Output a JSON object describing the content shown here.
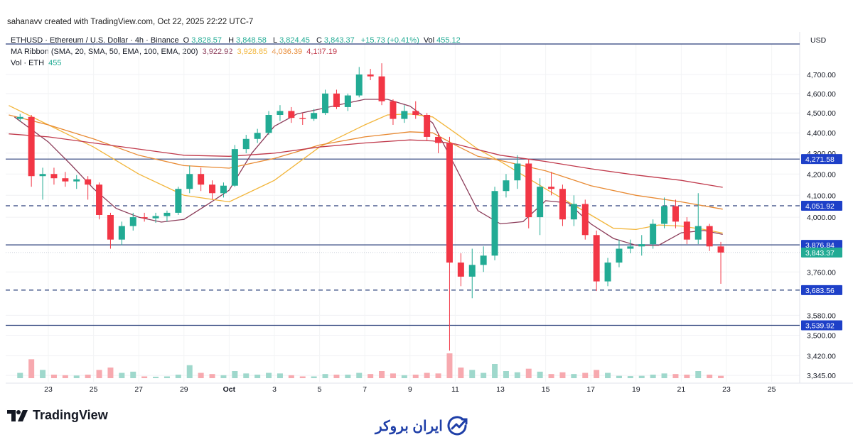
{
  "credit": "sahanavv created with TradingView.com, Oct 22, 2025 22:22 UTC-7",
  "legend": {
    "symbol": "ETHUSD · Ethereum / U.S. Dollar · 4h · Binance",
    "o_label": "O",
    "o": "3,828.57",
    "h_label": "H",
    "h": "3,848.58",
    "l_label": "L",
    "l": "3,824.45",
    "c_label": "C",
    "c": "3,843.37",
    "change": "+15.73 (+0.41%)",
    "vol_label": "Vol",
    "vol": "455.12",
    "ma_title": "MA Ribbon (SMA, 20, SMA, 50, EMA, 100, EMA, 200)",
    "ma_values": [
      "3,922.92",
      "3,928.85",
      "4,036.39",
      "4,137.19"
    ],
    "vol_title": "Vol · ETH",
    "vol_value": "455"
  },
  "colors": {
    "up": "#22ab94",
    "down": "#f23645",
    "up_vol": "#9fd8cc",
    "down_vol": "#f7a9af",
    "sma20": "#8c3d5a",
    "sma50": "#f2b53a",
    "ema100": "#e88a33",
    "ema200": "#c0394b",
    "level_line": "#2a3f7a",
    "level_tag": "#1e40c8",
    "price_tag": "#22ab94"
  },
  "chart_data": {
    "type": "candlestick",
    "title": "ETHUSD · Ethereum / U.S. Dollar · 4h · Binance",
    "ylabel": "USD",
    "yscale": "log",
    "ylim": [
      3345,
      4700
    ],
    "y_ticks": [
      "4,700.00",
      "4,600.00",
      "4,500.00",
      "4,400.00",
      "4,300.00",
      "4,200.00",
      "4,100.00",
      "4,000.00",
      "3,760.00",
      "3,580.00",
      "3,500.00",
      "3,420.00",
      "3,345.00"
    ],
    "y_tick_values": [
      4700,
      4600,
      4500,
      4400,
      4300,
      4200,
      4100,
      4000,
      3760,
      3580,
      3500,
      3420,
      3345
    ],
    "x_ticks": [
      {
        "label": "23",
        "date": "2025-09-23"
      },
      {
        "label": "25",
        "date": "2025-09-25"
      },
      {
        "label": "27",
        "date": "2025-09-27"
      },
      {
        "label": "29",
        "date": "2025-09-29"
      },
      {
        "label": "Oct",
        "date": "2025-10-01"
      },
      {
        "label": "3",
        "date": "2025-10-03"
      },
      {
        "label": "5",
        "date": "2025-10-05"
      },
      {
        "label": "7",
        "date": "2025-10-07"
      },
      {
        "label": "9",
        "date": "2025-10-09"
      },
      {
        "label": "11",
        "date": "2025-10-11"
      },
      {
        "label": "13",
        "date": "2025-10-13"
      },
      {
        "label": "15",
        "date": "2025-10-15"
      },
      {
        "label": "17",
        "date": "2025-10-17"
      },
      {
        "label": "19",
        "date": "2025-10-19"
      },
      {
        "label": "21",
        "date": "2025-10-21"
      },
      {
        "label": "23",
        "date": "2025-10-23"
      },
      {
        "label": "25",
        "date": "2025-10-25"
      }
    ],
    "grid": true,
    "candles_columns": [
      "time",
      "open",
      "high",
      "low",
      "close",
      "volume"
    ],
    "candles": [
      [
        "2025-09-21T12",
        4470,
        4495,
        4455,
        4480,
        9000
      ],
      [
        "2025-09-22T00",
        4480,
        4490,
        4140,
        4190,
        32000
      ],
      [
        "2025-09-22T12",
        4190,
        4230,
        4080,
        4200,
        14000
      ],
      [
        "2025-09-23T00",
        4200,
        4230,
        4150,
        4180,
        6000
      ],
      [
        "2025-09-23T12",
        4180,
        4210,
        4140,
        4165,
        5000
      ],
      [
        "2025-09-24T00",
        4165,
        4195,
        4130,
        4175,
        4500
      ],
      [
        "2025-09-24T12",
        4175,
        4190,
        4080,
        4150,
        6000
      ],
      [
        "2025-09-25T00",
        4150,
        4160,
        3990,
        4010,
        14000
      ],
      [
        "2025-09-25T12",
        4010,
        4020,
        3860,
        3900,
        18000
      ],
      [
        "2025-09-26T00",
        3900,
        3980,
        3875,
        3960,
        9000
      ],
      [
        "2025-09-26T12",
        3960,
        4020,
        3940,
        4000,
        11000
      ],
      [
        "2025-09-27T00",
        4000,
        4020,
        3980,
        3995,
        3000
      ],
      [
        "2025-09-27T12",
        3995,
        4020,
        3975,
        4005,
        2500
      ],
      [
        "2025-09-28T00",
        4005,
        4030,
        3980,
        4020,
        3000
      ],
      [
        "2025-09-28T12",
        4020,
        4140,
        4010,
        4130,
        6000
      ],
      [
        "2025-09-29T00",
        4130,
        4240,
        4110,
        4200,
        22000
      ],
      [
        "2025-09-29T12",
        4200,
        4230,
        4120,
        4150,
        9000
      ],
      [
        "2025-09-30T00",
        4150,
        4170,
        4080,
        4110,
        7000
      ],
      [
        "2025-09-30T12",
        4110,
        4160,
        4090,
        4145,
        5000
      ],
      [
        "2025-10-01T00",
        4145,
        4340,
        4140,
        4320,
        12000
      ],
      [
        "2025-10-01T12",
        4320,
        4390,
        4300,
        4370,
        8000
      ],
      [
        "2025-10-02T00",
        4370,
        4420,
        4350,
        4400,
        6000
      ],
      [
        "2025-10-02T12",
        4400,
        4510,
        4390,
        4490,
        9000
      ],
      [
        "2025-10-03T00",
        4490,
        4540,
        4460,
        4510,
        8000
      ],
      [
        "2025-10-03T12",
        4510,
        4530,
        4450,
        4475,
        5000
      ],
      [
        "2025-10-04T00",
        4475,
        4500,
        4440,
        4470,
        3000
      ],
      [
        "2025-10-04T12",
        4470,
        4520,
        4460,
        4500,
        3000
      ],
      [
        "2025-10-05T00",
        4500,
        4620,
        4490,
        4600,
        7000
      ],
      [
        "2025-10-05T12",
        4600,
        4620,
        4520,
        4530,
        6000
      ],
      [
        "2025-10-06T00",
        4530,
        4600,
        4510,
        4590,
        6000
      ],
      [
        "2025-10-06T12",
        4590,
        4740,
        4580,
        4700,
        9000
      ],
      [
        "2025-10-07T00",
        4700,
        4730,
        4670,
        4690,
        7000
      ],
      [
        "2025-10-07T12",
        4690,
        4760,
        4540,
        4560,
        12000
      ],
      [
        "2025-10-08T00",
        4560,
        4570,
        4440,
        4470,
        8000
      ],
      [
        "2025-10-08T12",
        4470,
        4540,
        4450,
        4510,
        5000
      ],
      [
        "2025-10-09T00",
        4510,
        4560,
        4470,
        4490,
        6000
      ],
      [
        "2025-10-09T12",
        4490,
        4500,
        4360,
        4380,
        9000
      ],
      [
        "2025-10-10T00",
        4380,
        4400,
        4300,
        4350,
        8000
      ],
      [
        "2025-10-10T12",
        4350,
        4380,
        3440,
        3800,
        42000
      ],
      [
        "2025-10-11T00",
        3800,
        3840,
        3700,
        3740,
        18000
      ],
      [
        "2025-10-11T12",
        3740,
        3860,
        3650,
        3790,
        14000
      ],
      [
        "2025-10-12T00",
        3790,
        3870,
        3760,
        3830,
        9000
      ],
      [
        "2025-10-12T12",
        3830,
        4140,
        3810,
        4120,
        24000
      ],
      [
        "2025-10-13T00",
        4120,
        4200,
        4090,
        4170,
        12000
      ],
      [
        "2025-10-13T12",
        4170,
        4290,
        4130,
        4250,
        10000
      ],
      [
        "2025-10-14T00",
        4250,
        4270,
        3950,
        4000,
        16000
      ],
      [
        "2025-10-14T12",
        4000,
        4180,
        3920,
        4140,
        11000
      ],
      [
        "2025-10-15T00",
        4140,
        4210,
        4100,
        4130,
        7000
      ],
      [
        "2025-10-15T12",
        4130,
        4150,
        3960,
        3990,
        10000
      ],
      [
        "2025-10-16T00",
        3990,
        4100,
        3960,
        4060,
        7000
      ],
      [
        "2025-10-16T12",
        4060,
        4080,
        3900,
        3920,
        9000
      ],
      [
        "2025-10-17T00",
        3920,
        3940,
        3680,
        3720,
        14000
      ],
      [
        "2025-10-17T12",
        3720,
        3820,
        3700,
        3800,
        9000
      ],
      [
        "2025-10-18T00",
        3800,
        3900,
        3780,
        3860,
        4000
      ],
      [
        "2025-10-18T12",
        3860,
        3900,
        3840,
        3870,
        3500
      ],
      [
        "2025-10-19T00",
        3870,
        3920,
        3830,
        3880,
        4000
      ],
      [
        "2025-10-19T12",
        3880,
        3990,
        3860,
        3970,
        6000
      ],
      [
        "2025-10-20T00",
        3970,
        4090,
        3950,
        4050,
        8000
      ],
      [
        "2025-10-20T12",
        4050,
        4080,
        3950,
        3980,
        7000
      ],
      [
        "2025-10-21T00",
        3980,
        4000,
        3880,
        3900,
        6000
      ],
      [
        "2025-10-21T12",
        3900,
        4110,
        3880,
        3960,
        12000
      ],
      [
        "2025-10-22T00",
        3960,
        3970,
        3850,
        3870,
        6000
      ],
      [
        "2025-10-22T12",
        3870,
        3890,
        3710,
        3843.37,
        4000
      ]
    ],
    "moving_averages": [
      {
        "name": "SMA 20",
        "color_key": "sma20",
        "points": [
          [
            "2025-09-21T12",
            4480
          ],
          [
            "2025-09-23T00",
            4355
          ],
          [
            "2025-09-24T00",
            4245
          ],
          [
            "2025-09-25T00",
            4131
          ],
          [
            "2025-09-26T00",
            4040
          ],
          [
            "2025-09-27T00",
            4000
          ],
          [
            "2025-09-28T00",
            3978
          ],
          [
            "2025-09-29T00",
            3990
          ],
          [
            "2025-09-30T00",
            4055
          ],
          [
            "2025-10-01T00",
            4124
          ],
          [
            "2025-10-02T00",
            4300
          ],
          [
            "2025-10-03T00",
            4433
          ],
          [
            "2025-10-04T00",
            4495
          ],
          [
            "2025-10-05T00",
            4520
          ],
          [
            "2025-10-06T00",
            4545
          ],
          [
            "2025-10-07T00",
            4570
          ],
          [
            "2025-10-08T00",
            4570
          ],
          [
            "2025-10-09T00",
            4535
          ],
          [
            "2025-10-10T00",
            4450
          ],
          [
            "2025-10-11T00",
            4236
          ],
          [
            "2025-10-12T00",
            4030
          ],
          [
            "2025-10-13T00",
            3970
          ],
          [
            "2025-10-14T00",
            3980
          ],
          [
            "2025-10-15T00",
            4075
          ],
          [
            "2025-10-16T00",
            4065
          ],
          [
            "2025-10-17T00",
            3970
          ],
          [
            "2025-10-18T00",
            3905
          ],
          [
            "2025-10-19T00",
            3875
          ],
          [
            "2025-10-20T00",
            3875
          ],
          [
            "2025-10-21T00",
            3930
          ],
          [
            "2025-10-22T00",
            3940
          ],
          [
            "2025-10-22T20",
            3922.92
          ]
        ]
      },
      {
        "name": "SMA 50",
        "color_key": "sma50",
        "points": [
          [
            "2025-09-21T06",
            4538
          ],
          [
            "2025-09-23T00",
            4440
          ],
          [
            "2025-09-25T00",
            4330
          ],
          [
            "2025-09-27T00",
            4200
          ],
          [
            "2025-09-29T00",
            4100
          ],
          [
            "2025-10-01T00",
            4070
          ],
          [
            "2025-10-03T00",
            4170
          ],
          [
            "2025-10-05T00",
            4330
          ],
          [
            "2025-10-07T00",
            4440
          ],
          [
            "2025-10-08T00",
            4490
          ],
          [
            "2025-10-09T00",
            4495
          ],
          [
            "2025-10-10T00",
            4480
          ],
          [
            "2025-10-11T00",
            4400
          ],
          [
            "2025-10-12T00",
            4320
          ],
          [
            "2025-10-13T00",
            4260
          ],
          [
            "2025-10-15T00",
            4130
          ],
          [
            "2025-10-17T00",
            4010
          ],
          [
            "2025-10-18T00",
            3950
          ],
          [
            "2025-10-19T00",
            3945
          ],
          [
            "2025-10-20T00",
            3965
          ],
          [
            "2025-10-21T00",
            3960
          ],
          [
            "2025-10-22T00",
            3945
          ],
          [
            "2025-10-22T20",
            3928.85
          ]
        ]
      },
      {
        "name": "EMA 100",
        "color_key": "ema100",
        "points": [
          [
            "2025-09-21T06",
            4490
          ],
          [
            "2025-09-23T00",
            4440
          ],
          [
            "2025-09-25T00",
            4370
          ],
          [
            "2025-09-27T00",
            4290
          ],
          [
            "2025-09-29T00",
            4240
          ],
          [
            "2025-10-01T00",
            4228
          ],
          [
            "2025-10-03T00",
            4275
          ],
          [
            "2025-10-05T00",
            4340
          ],
          [
            "2025-10-07T00",
            4380
          ],
          [
            "2025-10-09T00",
            4405
          ],
          [
            "2025-10-10T00",
            4400
          ],
          [
            "2025-10-11T00",
            4340
          ],
          [
            "2025-10-12T00",
            4285
          ],
          [
            "2025-10-13T00",
            4265
          ],
          [
            "2025-10-15T00",
            4215
          ],
          [
            "2025-10-17T00",
            4145
          ],
          [
            "2025-10-19T00",
            4100
          ],
          [
            "2025-10-21T00",
            4070
          ],
          [
            "2025-10-22T20",
            4036.39
          ]
        ]
      },
      {
        "name": "EMA 200",
        "color_key": "ema200",
        "points": [
          [
            "2025-09-21T06",
            4395
          ],
          [
            "2025-09-23T00",
            4380
          ],
          [
            "2025-09-25T00",
            4350
          ],
          [
            "2025-09-27T00",
            4320
          ],
          [
            "2025-09-29T00",
            4290
          ],
          [
            "2025-10-01T00",
            4285
          ],
          [
            "2025-10-03T00",
            4300
          ],
          [
            "2025-10-05T00",
            4330
          ],
          [
            "2025-10-07T00",
            4350
          ],
          [
            "2025-10-09T00",
            4365
          ],
          [
            "2025-10-10T00",
            4360
          ],
          [
            "2025-10-11T00",
            4345
          ],
          [
            "2025-10-13T00",
            4290
          ],
          [
            "2025-10-15T00",
            4260
          ],
          [
            "2025-10-17T00",
            4225
          ],
          [
            "2025-10-19T00",
            4195
          ],
          [
            "2025-10-21T00",
            4170
          ],
          [
            "2025-10-22T20",
            4137.19
          ]
        ]
      }
    ],
    "horizontal_levels": [
      {
        "value": 4271.58,
        "label": "4,271.58",
        "style": "solid"
      },
      {
        "value": 4051.92,
        "label": "4,051.92",
        "style": "dashed"
      },
      {
        "value": 3876.84,
        "label": "3,876.84",
        "style": "solid"
      },
      {
        "value": 3683.56,
        "label": "3,683.56",
        "style": "dashed"
      },
      {
        "value": 3539.92,
        "label": "3,539.92",
        "style": "solid"
      }
    ],
    "last_price": {
      "value": 3843.37,
      "label": "3,843.37"
    }
  },
  "footer": {
    "tradingview_logo": "TradingView",
    "broker_logo": "ایران بروکر"
  }
}
